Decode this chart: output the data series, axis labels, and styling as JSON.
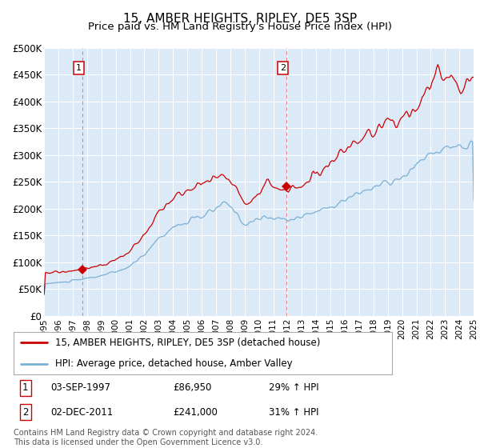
{
  "title": "15, AMBER HEIGHTS, RIPLEY, DE5 3SP",
  "subtitle": "Price paid vs. HM Land Registry's House Price Index (HPI)",
  "legend_line1": "15, AMBER HEIGHTS, RIPLEY, DE5 3SP (detached house)",
  "legend_line2": "HPI: Average price, detached house, Amber Valley",
  "transaction1_date": "03-SEP-1997",
  "transaction1_price": "£86,950",
  "transaction1_hpi": "29% ↑ HPI",
  "transaction1_year": 1997.67,
  "transaction1_value": 86950,
  "transaction2_date": "02-DEC-2011",
  "transaction2_price": "£241,000",
  "transaction2_hpi": "31% ↑ HPI",
  "transaction2_year": 2011.92,
  "transaction2_value": 241000,
  "footer": "Contains HM Land Registry data © Crown copyright and database right 2024.\nThis data is licensed under the Open Government Licence v3.0.",
  "ylim": [
    0,
    500000
  ],
  "xlim": [
    1995,
    2025
  ],
  "ytick_values": [
    0,
    50000,
    100000,
    150000,
    200000,
    250000,
    300000,
    350000,
    400000,
    450000,
    500000
  ],
  "ytick_labels": [
    "£0",
    "£50K",
    "£100K",
    "£150K",
    "£200K",
    "£250K",
    "£300K",
    "£350K",
    "£400K",
    "£450K",
    "£500K"
  ],
  "chart_bg": "#dce9f7",
  "fig_bg": "#ffffff",
  "red_color": "#cc0000",
  "blue_color": "#7ab0d4",
  "dashed_red": "#e88080",
  "grid_color": "#ffffff",
  "title_fontsize": 11,
  "subtitle_fontsize": 9.5
}
